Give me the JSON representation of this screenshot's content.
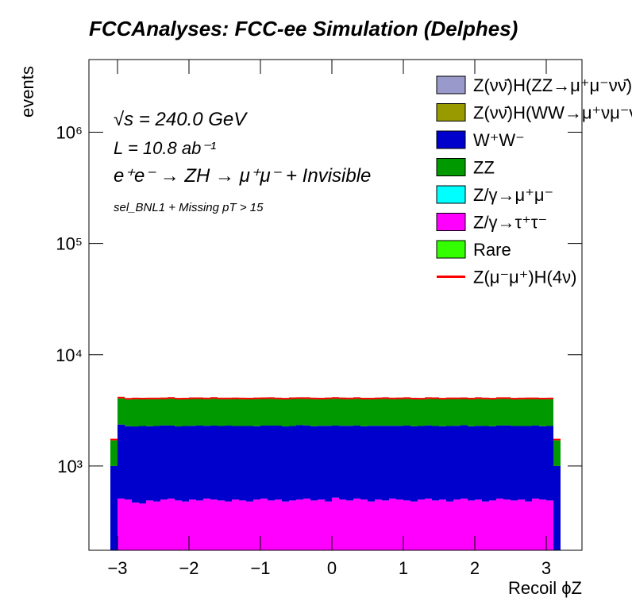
{
  "chart_data": {
    "type": "stacked-histogram",
    "title": "FCCAnalyses: FCC-ee Simulation (Delphes)",
    "xlabel": "Recoil ϕZ",
    "ylabel": "events",
    "annotations": [
      "√s = 240.0 GeV",
      "L = 10.8 ab⁻¹",
      "e⁺e⁻ → ZH → μ⁺μ⁻ + Invisible",
      "sel_BNL1 + Missing pT > 15"
    ],
    "log_y": true,
    "xlim": [
      -3.4,
      3.5
    ],
    "xticks": [
      {
        "value": -3,
        "label": "−3"
      },
      {
        "value": -2,
        "label": "−2"
      },
      {
        "value": -1,
        "label": "−1"
      },
      0,
      1,
      2,
      3
    ],
    "ylim": [
      175,
      4500000
    ],
    "yticks": [
      {
        "value": 1000,
        "label": "10³"
      },
      {
        "value": 10000,
        "label": "10⁴"
      },
      {
        "value": 100000,
        "label": "10⁵"
      },
      {
        "value": 1000000,
        "label": "10⁶"
      }
    ],
    "bins": [
      -3.1,
      -3.0,
      -2.9,
      -2.8,
      -2.7,
      -2.6,
      -2.5,
      -2.4,
      -2.3,
      -2.2,
      -2.1,
      -2.0,
      -1.9,
      -1.8,
      -1.7,
      -1.6,
      -1.5,
      -1.4,
      -1.3,
      -1.2,
      -1.1,
      -1.0,
      -0.9,
      -0.8,
      -0.7,
      -0.6,
      -0.5,
      -0.4,
      -0.3,
      -0.2,
      -0.1,
      0,
      0.1,
      0.2,
      0.3,
      0.4,
      0.5,
      0.6,
      0.7,
      0.8,
      0.9,
      1.0,
      1.1,
      1.2,
      1.3,
      1.4,
      1.5,
      1.6,
      1.7,
      1.8,
      1.9,
      2.0,
      2.1,
      2.2,
      2.3,
      2.4,
      2.5,
      2.6,
      2.7,
      2.8,
      2.9,
      3.0,
      3.1,
      3.2
    ],
    "series": [
      {
        "name": "Z(νν̄)H(ZZ→μ⁺μ⁻νν̄)",
        "color": "#9999cc",
        "values": [
          0,
          0,
          0,
          0,
          0,
          0,
          0,
          0,
          0,
          0,
          0,
          0,
          0,
          0,
          0,
          0,
          0,
          0,
          0,
          0,
          0,
          0,
          0,
          0,
          0,
          0,
          0,
          0,
          0,
          0,
          0,
          0,
          0,
          0,
          0,
          0,
          0,
          0,
          0,
          0,
          0,
          0,
          0,
          0,
          0,
          0,
          0,
          0,
          0,
          0,
          0,
          0,
          0,
          0,
          0,
          0,
          0,
          0,
          0,
          0,
          0,
          0,
          0
        ]
      },
      {
        "name": "Z(νν̄)H(WW→μ⁺νμ⁻ν̄)",
        "color": "#999900",
        "values": [
          0,
          0,
          0,
          0,
          0,
          0,
          0,
          0,
          0,
          0,
          0,
          0,
          0,
          0,
          0,
          0,
          0,
          0,
          0,
          0,
          0,
          0,
          0,
          0,
          0,
          0,
          0,
          0,
          0,
          0,
          0,
          0,
          0,
          0,
          0,
          0,
          0,
          0,
          0,
          0,
          0,
          0,
          0,
          0,
          0,
          0,
          0,
          0,
          0,
          0,
          0,
          0,
          0,
          0,
          0,
          0,
          0,
          0,
          0,
          0,
          0,
          0,
          0
        ]
      },
      {
        "name": "W⁺W⁻",
        "color": "#0000cc",
        "values": [
          850,
          1850,
          1780,
          1800,
          1830,
          1790,
          1810,
          1820,
          1800,
          1780,
          1810,
          1800,
          1820,
          1790,
          1810,
          1800,
          1830,
          1790,
          1800,
          1810,
          1780,
          1800,
          1820,
          1810,
          1790,
          1800,
          1830,
          1810,
          1790,
          1800,
          1820,
          1790,
          1800,
          1810,
          1800,
          1780,
          1820,
          1800,
          1810,
          1790,
          1800,
          1820,
          1800,
          1790,
          1810,
          1800,
          1780,
          1810,
          1800,
          1820,
          1790,
          1800,
          1810,
          1790,
          1800,
          1820,
          1800,
          1790,
          1810,
          1800,
          1780,
          1800,
          850
        ]
      },
      {
        "name": "ZZ",
        "color": "#009900",
        "values": [
          700,
          1700,
          1680,
          1720,
          1690,
          1710,
          1700,
          1680,
          1720,
          1700,
          1690,
          1710,
          1700,
          1690,
          1720,
          1700,
          1680,
          1710,
          1700,
          1690,
          1720,
          1700,
          1710,
          1680,
          1700,
          1720,
          1690,
          1700,
          1710,
          1680,
          1700,
          1720,
          1700,
          1690,
          1710,
          1700,
          1680,
          1700,
          1720,
          1690,
          1700,
          1710,
          1700,
          1680,
          1700,
          1720,
          1690,
          1710,
          1700,
          1680,
          1700,
          1720,
          1700,
          1690,
          1710,
          1700,
          1680,
          1700,
          1710,
          1690,
          1700,
          1700,
          700
        ]
      },
      {
        "name": "Z/γ→μ⁺μ⁻",
        "color": "#00ffff",
        "values": [
          0,
          0,
          0,
          0,
          0,
          0,
          0,
          0,
          0,
          0,
          0,
          0,
          0,
          0,
          0,
          0,
          0,
          0,
          0,
          0,
          0,
          0,
          0,
          0,
          0,
          0,
          0,
          0,
          0,
          0,
          0,
          0,
          0,
          0,
          0,
          0,
          0,
          0,
          0,
          0,
          0,
          0,
          0,
          0,
          0,
          0,
          0,
          0,
          0,
          0,
          0,
          0,
          0,
          0,
          0,
          0,
          0,
          0,
          0,
          0,
          0,
          0,
          0
        ]
      },
      {
        "name": "Z/γ→τ⁺τ⁻",
        "color": "#ff00ff",
        "values": [
          150,
          510,
          500,
          470,
          460,
          490,
          480,
          500,
          510,
          490,
          480,
          500,
          490,
          510,
          500,
          490,
          480,
          500,
          490,
          480,
          500,
          510,
          490,
          500,
          480,
          490,
          500,
          510,
          490,
          500,
          480,
          520,
          500,
          490,
          510,
          500,
          480,
          500,
          490,
          510,
          500,
          490,
          480,
          500,
          510,
          490,
          500,
          480,
          500,
          510,
          490,
          500,
          480,
          490,
          510,
          500,
          490,
          500,
          480,
          510,
          500,
          490,
          150
        ]
      },
      {
        "name": "Rare",
        "color": "#33ff00",
        "values": [
          0,
          0,
          0,
          0,
          0,
          0,
          0,
          0,
          0,
          0,
          0,
          0,
          0,
          0,
          0,
          0,
          0,
          0,
          0,
          0,
          0,
          0,
          0,
          0,
          0,
          0,
          0,
          0,
          0,
          0,
          0,
          0,
          0,
          0,
          0,
          0,
          0,
          0,
          0,
          0,
          0,
          0,
          0,
          0,
          0,
          0,
          0,
          0,
          0,
          0,
          0,
          0,
          0,
          0,
          0,
          0,
          0,
          0,
          0,
          0,
          0,
          0,
          0
        ]
      },
      {
        "name": "Z(μ⁻μ⁺)H(4ν)",
        "color": "#ff0000",
        "values": [
          30,
          60,
          60,
          60,
          60,
          60,
          60,
          60,
          60,
          60,
          60,
          60,
          60,
          60,
          60,
          60,
          60,
          60,
          60,
          60,
          60,
          60,
          60,
          60,
          60,
          60,
          60,
          60,
          60,
          60,
          60,
          60,
          60,
          60,
          60,
          60,
          60,
          60,
          60,
          60,
          60,
          60,
          60,
          60,
          60,
          60,
          60,
          60,
          60,
          60,
          60,
          60,
          60,
          60,
          60,
          60,
          60,
          60,
          60,
          60,
          60,
          60,
          30
        ]
      }
    ]
  }
}
